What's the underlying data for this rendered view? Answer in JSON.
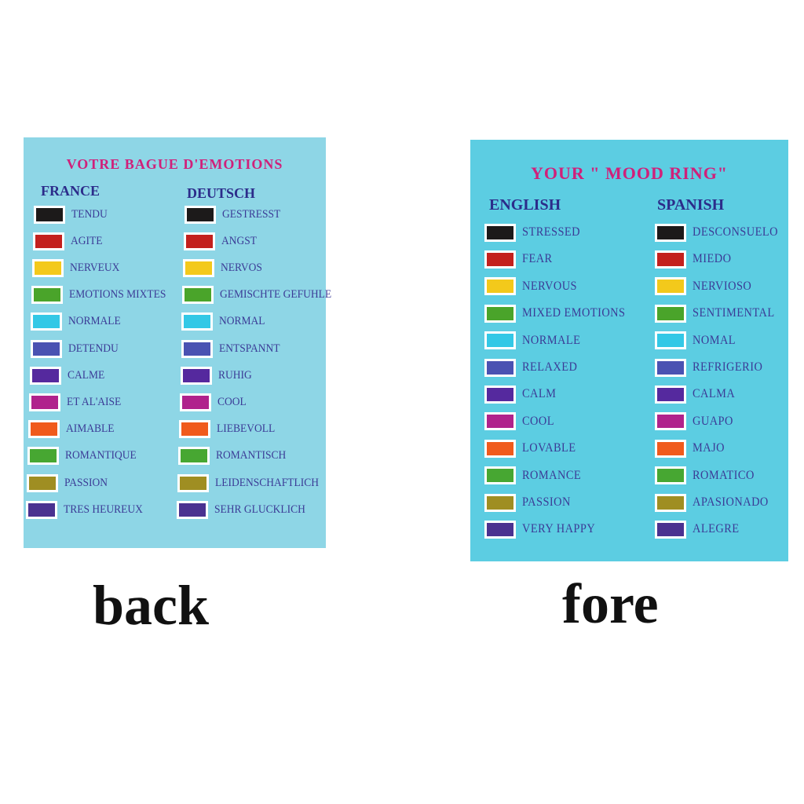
{
  "back": {
    "title": "VOTRE BAGUE D'EMOTIONS",
    "left_header": "FRANCE",
    "right_header": "DEUTSCH",
    "left_items": [
      "TENDU",
      "AGITE",
      "NERVEUX",
      "EMOTIONS MIXTES",
      "NORMALE",
      "DETENDU",
      "CALME",
      "ET AL'AISE",
      "AIMABLE",
      "ROMANTIQUE",
      "PASSION",
      "TRES HEUREUX"
    ],
    "right_items": [
      "GESTRESST",
      "ANGST",
      "NERVOS",
      "GEMISCHTE GEFUHLE",
      "NORMAL",
      "ENTSPANNT",
      "RUHIG",
      "COOL",
      "LIEBEVOLL",
      "ROMANTISCH",
      "LEIDENSCHAFTLICH",
      "SEHR GLUCKLICH"
    ],
    "caption": "back"
  },
  "fore": {
    "title": "YOUR \" MOOD RING\"",
    "left_header": "ENGLISH",
    "right_header": "SPANISH",
    "left_items": [
      "STRESSED",
      "FEAR",
      "NERVOUS",
      "MIXED EMOTIONS",
      "NORMALE",
      "RELAXED",
      "CALM",
      "COOL",
      "LOVABLE",
      "ROMANCE",
      "PASSION",
      "VERY HAPPY"
    ],
    "right_items": [
      "DESCONSUELO",
      "MIEDO",
      "NERVIOSO",
      "SENTIMENTAL",
      "NOMAL",
      "REFRIGERIO",
      "CALMA",
      "GUAPO",
      "MAJO",
      "ROMATICO",
      "APASIONADO",
      "ALEGRE"
    ],
    "caption": "fore"
  },
  "colors": {
    "swatches": [
      "#1c1a1a",
      "#c3201d",
      "#f3c91b",
      "#4aa42a",
      "#33c8e6",
      "#4a52b2",
      "#55299e",
      "#b0228c",
      "#f05a1c",
      "#47a732",
      "#9f8e22",
      "#4a3190"
    ],
    "title": "#d0207a",
    "header": "#2c2c8a",
    "label": "#3b3b96"
  }
}
